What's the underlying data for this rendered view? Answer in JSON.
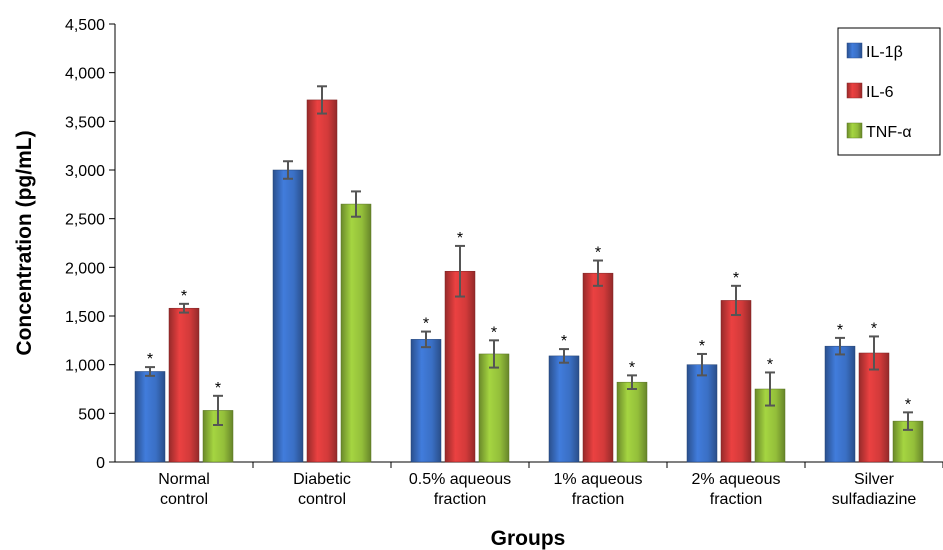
{
  "colors": {
    "il1b": "#3a6fc4",
    "il6": "#d23a3a",
    "tnfa": "#93be3a",
    "error_bar": "#555555"
  },
  "chart_data": {
    "type": "bar",
    "xlabel": "Groups",
    "ylabel": "Concentration  (pg/mL)",
    "ylim": [
      0,
      4500
    ],
    "yticks": [
      0,
      500,
      1000,
      1500,
      2000,
      2500,
      3000,
      3500,
      4000,
      4500
    ],
    "ytick_labels": [
      "0",
      "500",
      "1,000",
      "1,500",
      "2,000",
      "2,500",
      "3,000",
      "3,500",
      "4,000",
      "4,500"
    ],
    "grid": false,
    "legend_position": "top-right",
    "categories": [
      [
        "Normal",
        "control"
      ],
      [
        "Diabetic",
        "control"
      ],
      [
        "0.5% aqueous",
        "fraction"
      ],
      [
        "1% aqueous",
        "fraction"
      ],
      [
        "2% aqueous",
        "fraction"
      ],
      [
        "Silver",
        "sulfadiazine"
      ]
    ],
    "series": [
      {
        "name": "IL-1β",
        "color": "#3a6fc4",
        "values": [
          930,
          3000,
          1260,
          1090,
          1000,
          1190
        ],
        "errors": [
          45,
          90,
          80,
          70,
          110,
          85
        ],
        "significant": [
          true,
          false,
          true,
          true,
          true,
          true
        ]
      },
      {
        "name": "IL-6",
        "color": "#d23a3a",
        "values": [
          1580,
          3720,
          1960,
          1940,
          1660,
          1120
        ],
        "errors": [
          45,
          140,
          260,
          130,
          150,
          170
        ],
        "significant": [
          true,
          false,
          true,
          true,
          true,
          true
        ]
      },
      {
        "name": "TNF-α",
        "color": "#93be3a",
        "values": [
          530,
          2650,
          1110,
          820,
          750,
          420
        ],
        "errors": [
          150,
          130,
          140,
          70,
          170,
          90
        ],
        "significant": [
          true,
          false,
          true,
          true,
          true,
          true
        ]
      }
    ],
    "significance_marker": "*"
  }
}
